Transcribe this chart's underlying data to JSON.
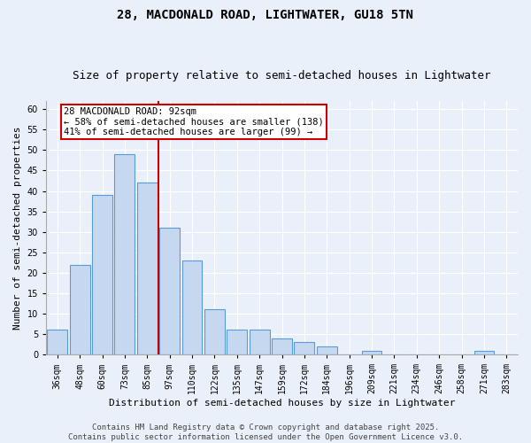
{
  "title": "28, MACDONALD ROAD, LIGHTWATER, GU18 5TN",
  "subtitle": "Size of property relative to semi-detached houses in Lightwater",
  "xlabel": "Distribution of semi-detached houses by size in Lightwater",
  "ylabel": "Number of semi-detached properties",
  "categories": [
    "36sqm",
    "48sqm",
    "60sqm",
    "73sqm",
    "85sqm",
    "97sqm",
    "110sqm",
    "122sqm",
    "135sqm",
    "147sqm",
    "159sqm",
    "172sqm",
    "184sqm",
    "196sqm",
    "209sqm",
    "221sqm",
    "234sqm",
    "246sqm",
    "258sqm",
    "271sqm",
    "283sqm"
  ],
  "values": [
    6,
    22,
    39,
    49,
    42,
    31,
    23,
    11,
    6,
    6,
    4,
    3,
    2,
    0,
    1,
    0,
    0,
    0,
    0,
    1,
    0
  ],
  "bar_color": "#c5d8f0",
  "bar_edge_color": "#5b9bd5",
  "property_bin_index": 5,
  "annotation_title": "28 MACDONALD ROAD: 92sqm",
  "annotation_line2": "← 58% of semi-detached houses are smaller (138)",
  "annotation_line3": "41% of semi-detached houses are larger (99) →",
  "vline_color": "#cc0000",
  "annotation_box_color": "#ffffff",
  "annotation_box_edge": "#cc0000",
  "ylim": [
    0,
    62
  ],
  "yticks": [
    0,
    5,
    10,
    15,
    20,
    25,
    30,
    35,
    40,
    45,
    50,
    55,
    60
  ],
  "footer_line1": "Contains HM Land Registry data © Crown copyright and database right 2025.",
  "footer_line2": "Contains public sector information licensed under the Open Government Licence v3.0.",
  "background_color": "#eaf0fa",
  "plot_bg_color": "#eaf0fa",
  "title_fontsize": 10,
  "subtitle_fontsize": 9,
  "axis_label_fontsize": 8,
  "tick_fontsize": 7,
  "annotation_fontsize": 7.5,
  "footer_fontsize": 6.5
}
